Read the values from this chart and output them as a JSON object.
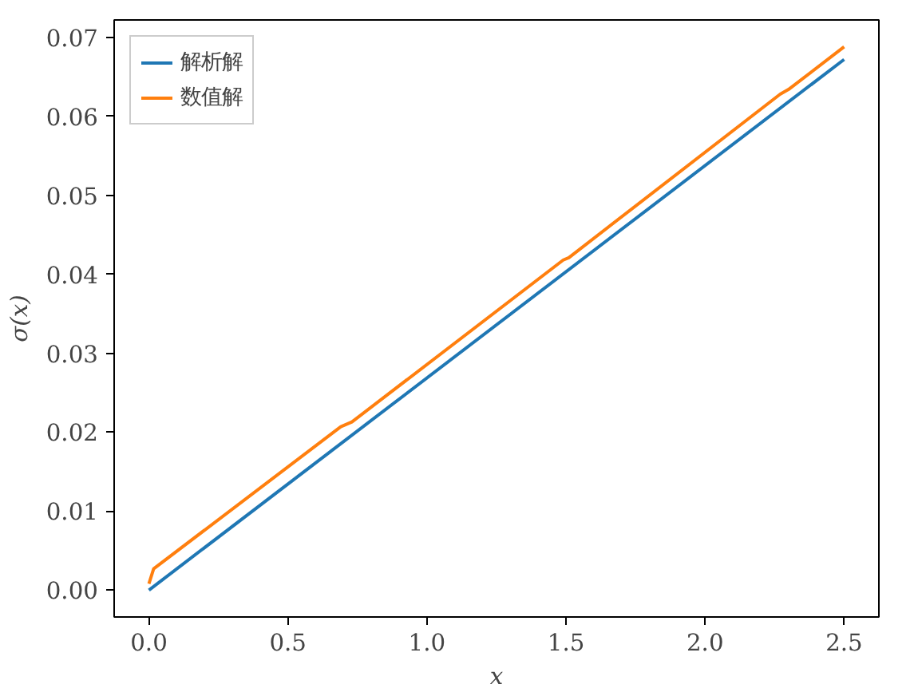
{
  "chart_data": {
    "type": "line",
    "xlabel": "x",
    "ylabel": "σ(x)",
    "series": [
      {
        "name": "解析解",
        "color": "#1f77b4",
        "x": [
          0,
          2.5
        ],
        "values": [
          0,
          0.0672
        ]
      },
      {
        "name": "数值解",
        "color": "#ff7f0e",
        "x": [
          0,
          0.017,
          0.69,
          0.73,
          1.49,
          1.51,
          2.27,
          2.3,
          2.5
        ],
        "values": [
          0.0008,
          0.0027,
          0.0207,
          0.0213,
          0.0418,
          0.0421,
          0.0628,
          0.0634,
          0.0688
        ]
      }
    ],
    "xlim": [
      -0.125,
      2.625
    ],
    "ylim": [
      -0.0034,
      0.0722
    ],
    "xticks": [
      {
        "value": 0,
        "label": "0.0"
      },
      {
        "value": 0.5,
        "label": "0.5"
      },
      {
        "value": 1,
        "label": "1.0"
      },
      {
        "value": 1.5,
        "label": "1.5"
      },
      {
        "value": 2,
        "label": "2.0"
      },
      {
        "value": 2.5,
        "label": "2.5"
      }
    ],
    "yticks": [
      {
        "value": 0,
        "label": "0.00"
      },
      {
        "value": 0.01,
        "label": "0.01"
      },
      {
        "value": 0.02,
        "label": "0.02"
      },
      {
        "value": 0.03,
        "label": "0.03"
      },
      {
        "value": 0.04,
        "label": "0.04"
      },
      {
        "value": 0.05,
        "label": "0.05"
      },
      {
        "value": 0.06,
        "label": "0.06"
      },
      {
        "value": 0.07,
        "label": "0.07"
      }
    ],
    "grid": false,
    "legend": "top left",
    "line_style": "solid",
    "marker": "none"
  }
}
